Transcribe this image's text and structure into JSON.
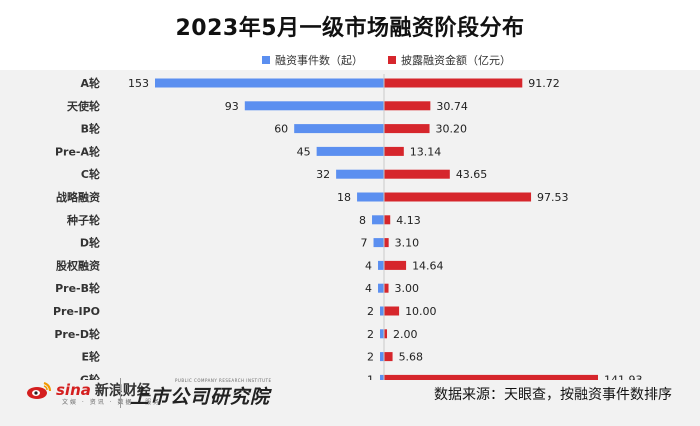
{
  "chart_data": {
    "type": "bar",
    "orientation": "horizontal-diverging",
    "title": "2023年5月一级市场融资阶段分布",
    "categories": [
      "A轮",
      "天使轮",
      "B轮",
      "Pre-A轮",
      "C轮",
      "战略融资",
      "种子轮",
      "D轮",
      "股权融资",
      "Pre-B轮",
      "Pre-IPO",
      "Pre-D轮",
      "E轮",
      "G轮"
    ],
    "series": [
      {
        "name": "融资事件数（起）",
        "color": "#5b8ff0",
        "direction": "left",
        "values": [
          153,
          93,
          60,
          45,
          32,
          18,
          8,
          7,
          4,
          4,
          2,
          2,
          2,
          1
        ],
        "labels": [
          "153",
          "93",
          "60",
          "45",
          "32",
          "18",
          "8",
          "7",
          "4",
          "4",
          "2",
          "2",
          "2",
          "1"
        ]
      },
      {
        "name": "披露融资金额（亿元）",
        "color": "#d6262c",
        "direction": "right",
        "values": [
          91.72,
          30.74,
          30.2,
          13.14,
          43.65,
          97.53,
          4.13,
          3.1,
          14.64,
          3.0,
          10.0,
          2.0,
          5.68,
          141.93
        ],
        "labels": [
          "91.72",
          "30.74",
          "30.20",
          "13.14",
          "43.65",
          "97.53",
          "4.13",
          "3.10",
          "14.64",
          "3.00",
          "10.00",
          "2.00",
          "5.68",
          "141.93"
        ]
      }
    ],
    "left_max": 153,
    "right_max": 141.93
  },
  "footer": {
    "sina_brand": "sina",
    "sina_name": "新浪财经",
    "sina_tags": "文娱 · 资讯 · 数据 · 服务",
    "institute": "上市公司研究院",
    "institute_en": "PUBLIC COMPANY RESEARCH INSTITUTE",
    "source": "数据来源：天眼查，按融资事件数排序"
  }
}
